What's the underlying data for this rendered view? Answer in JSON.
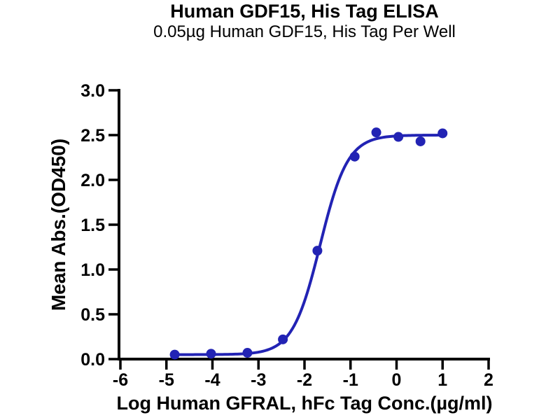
{
  "header": {
    "title": "Human GDF15, His Tag ELISA",
    "subtitle": "0.05µg Human GDF15, His Tag Per Well"
  },
  "chart_data": {
    "type": "scatter",
    "title": "Human GDF15, His Tag ELISA",
    "subtitle": "0.05µg Human GDF15, His Tag Per Well",
    "xlabel": "Log Human GFRAL, hFc Tag Conc.(µg/ml)",
    "ylabel": "Mean Abs.(OD450)",
    "xlim": [
      -6,
      2
    ],
    "ylim": [
      0,
      3
    ],
    "xticks": [
      -6,
      -5,
      -4,
      -3,
      -2,
      -1,
      0,
      1,
      2
    ],
    "yticks": [
      0,
      0.5,
      1,
      1.5,
      2,
      2.5,
      3
    ],
    "grid": false,
    "legend": false,
    "points": [
      {
        "x": -4.82,
        "y": 0.05
      },
      {
        "x": -4.03,
        "y": 0.06
      },
      {
        "x": -3.24,
        "y": 0.07
      },
      {
        "x": -2.47,
        "y": 0.22
      },
      {
        "x": -1.72,
        "y": 1.21
      },
      {
        "x": -0.91,
        "y": 2.26
      },
      {
        "x": -0.44,
        "y": 2.53
      },
      {
        "x": 0.04,
        "y": 2.48
      },
      {
        "x": 0.52,
        "y": 2.43
      },
      {
        "x": 1.0,
        "y": 2.52
      }
    ],
    "curve_fit": {
      "model": "4PL",
      "bottom": 0.05,
      "top": 2.5,
      "logEC50": -1.66,
      "hillslope": 1.45,
      "x_start": -4.82,
      "x_end": 1.0
    },
    "colors": {
      "series": "#2223B4",
      "axis": "#000000",
      "background": "#ffffff"
    }
  }
}
